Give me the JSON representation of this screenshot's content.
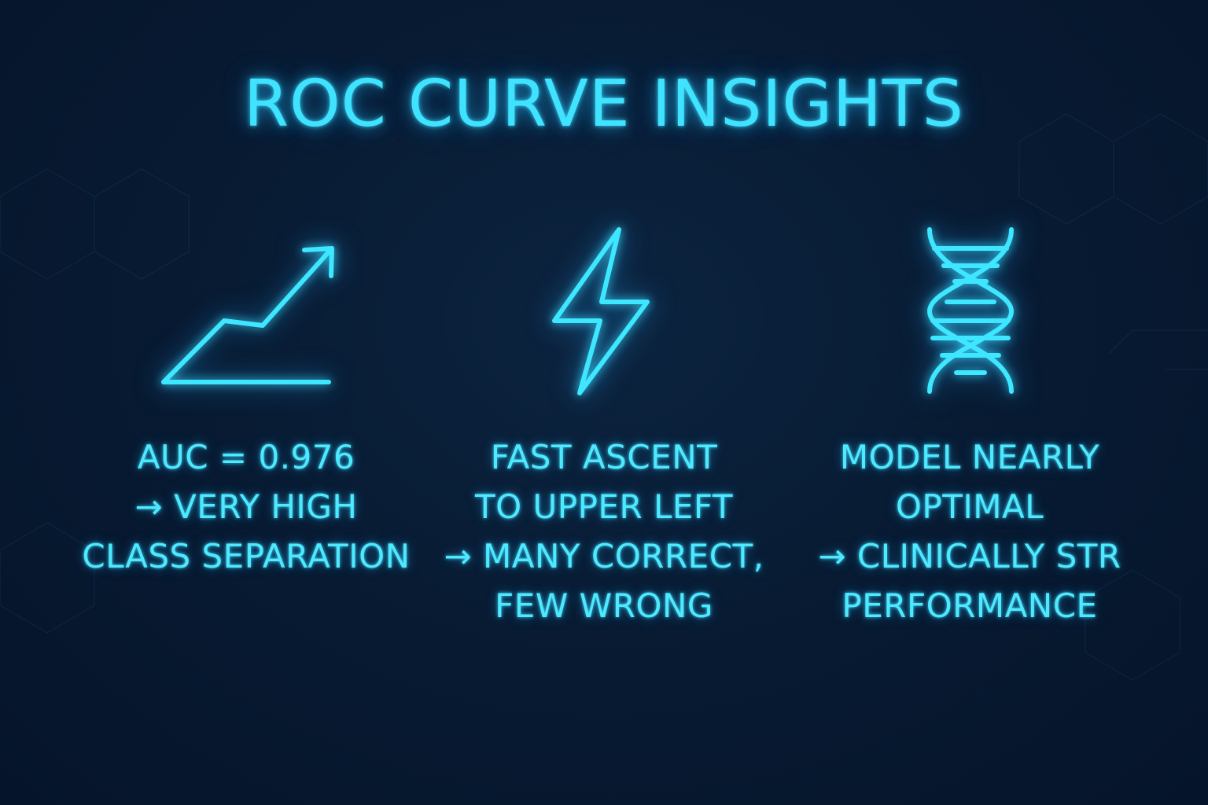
{
  "title": "ROC CURVE INSIGHTS",
  "colors": {
    "background": "#081b33",
    "accent": "#3fe3ff"
  },
  "cards": [
    {
      "icon": "trend-arrow-icon",
      "lines": [
        "AUC = 0.976",
        "→ VERY HIGH",
        "CLASS SEPARATION"
      ]
    },
    {
      "icon": "lightning-bolt-icon",
      "lines": [
        "FAST ASCENT",
        "TO UPPER LEFT",
        "→ MANY CORRECT,",
        "FEW WRONG"
      ]
    },
    {
      "icon": "dna-helix-icon",
      "lines": [
        "MODEL NEARLY",
        "OPTIMAL",
        "→ CLINICALLY STR",
        "PERFORMANCE"
      ]
    }
  ]
}
